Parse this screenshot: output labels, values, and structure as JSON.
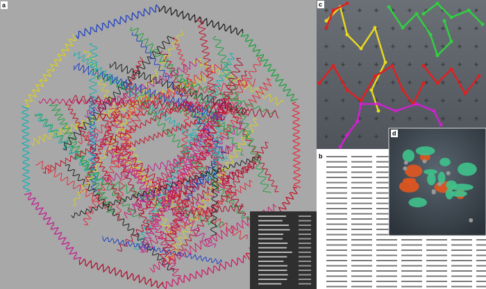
{
  "panel_labels": [
    "a",
    "b",
    "c",
    "d"
  ]
}
